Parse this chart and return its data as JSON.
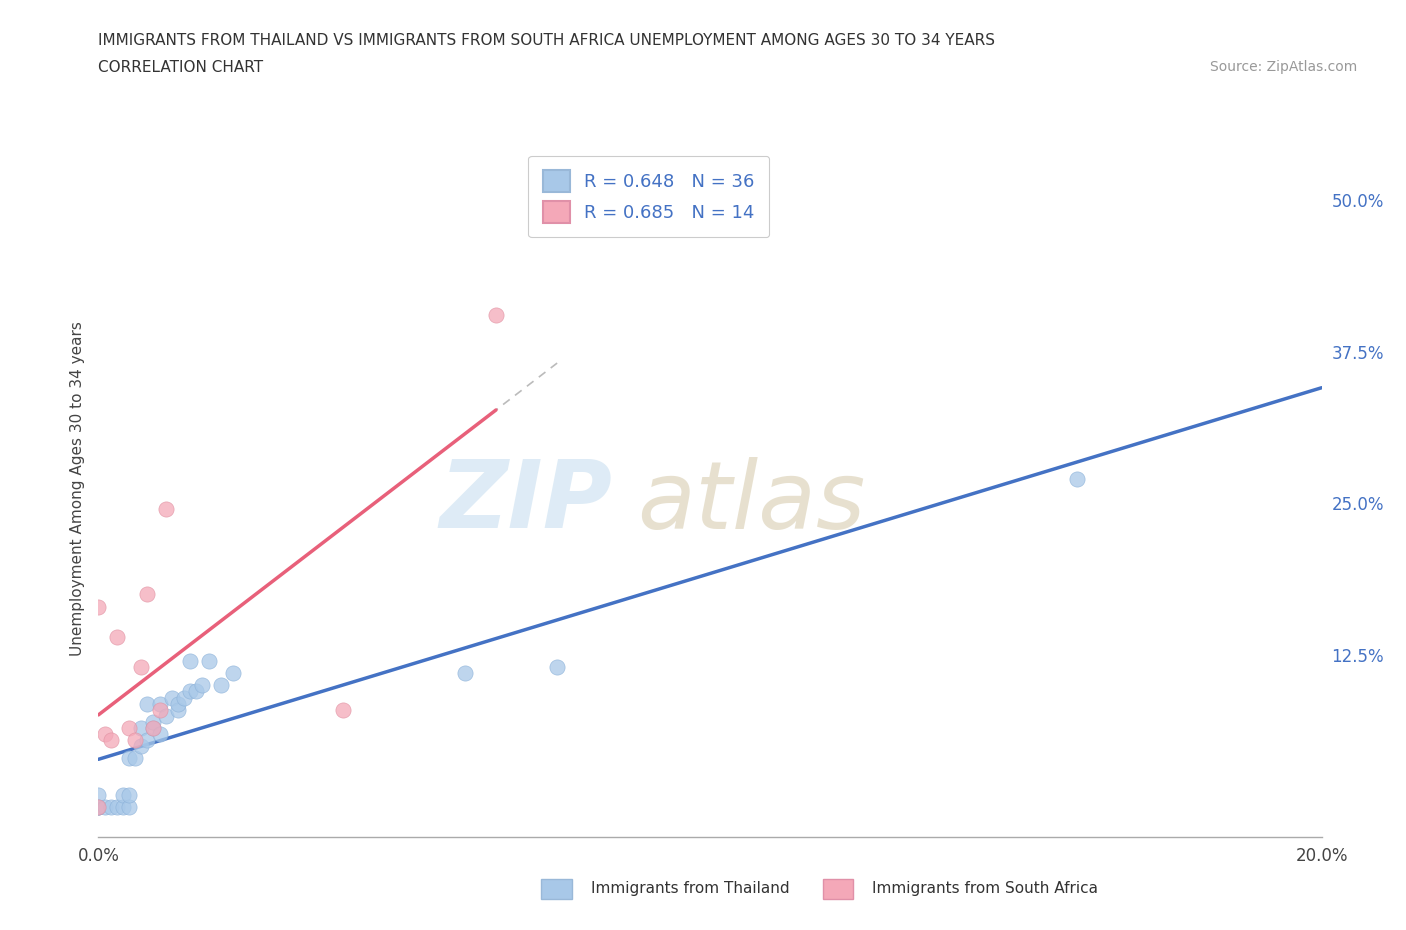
{
  "title_line1": "IMMIGRANTS FROM THAILAND VS IMMIGRANTS FROM SOUTH AFRICA UNEMPLOYMENT AMONG AGES 30 TO 34 YEARS",
  "title_line2": "CORRELATION CHART",
  "source_text": "Source: ZipAtlas.com",
  "ylabel": "Unemployment Among Ages 30 to 34 years",
  "xlim": [
    0.0,
    0.2
  ],
  "ylim": [
    -0.025,
    0.55
  ],
  "yticks": [
    0.0,
    0.125,
    0.25,
    0.375,
    0.5
  ],
  "ytick_labels": [
    "",
    "12.5%",
    "25.0%",
    "37.5%",
    "50.0%"
  ],
  "xticks": [
    0.0,
    0.04,
    0.08,
    0.12,
    0.16,
    0.2
  ],
  "xtick_labels": [
    "0.0%",
    "",
    "",
    "",
    "",
    "20.0%"
  ],
  "thailand_color": "#a8c8e8",
  "south_africa_color": "#f4a8b8",
  "thailand_line_color": "#4472c4",
  "south_africa_line_color": "#e8607a",
  "R_thailand": 0.648,
  "N_thailand": 36,
  "R_south_africa": 0.685,
  "N_south_africa": 14,
  "thailand_x": [
    0.0,
    0.0,
    0.0,
    0.0,
    0.001,
    0.002,
    0.003,
    0.004,
    0.004,
    0.005,
    0.005,
    0.005,
    0.006,
    0.007,
    0.007,
    0.008,
    0.008,
    0.009,
    0.009,
    0.01,
    0.01,
    0.011,
    0.012,
    0.013,
    0.013,
    0.014,
    0.015,
    0.015,
    0.016,
    0.017,
    0.018,
    0.02,
    0.022,
    0.06,
    0.075,
    0.16
  ],
  "thailand_y": [
    0.0,
    0.0,
    0.0,
    0.01,
    0.0,
    0.0,
    0.0,
    0.0,
    0.01,
    0.0,
    0.01,
    0.04,
    0.04,
    0.05,
    0.065,
    0.055,
    0.085,
    0.065,
    0.07,
    0.06,
    0.085,
    0.075,
    0.09,
    0.08,
    0.085,
    0.09,
    0.095,
    0.12,
    0.095,
    0.1,
    0.12,
    0.1,
    0.11,
    0.11,
    0.115,
    0.27
  ],
  "south_africa_x": [
    0.0,
    0.0,
    0.001,
    0.002,
    0.003,
    0.005,
    0.006,
    0.007,
    0.008,
    0.009,
    0.01,
    0.011,
    0.04,
    0.065
  ],
  "south_africa_y": [
    0.0,
    0.165,
    0.06,
    0.055,
    0.14,
    0.065,
    0.055,
    0.115,
    0.175,
    0.065,
    0.08,
    0.245,
    0.08,
    0.405
  ]
}
